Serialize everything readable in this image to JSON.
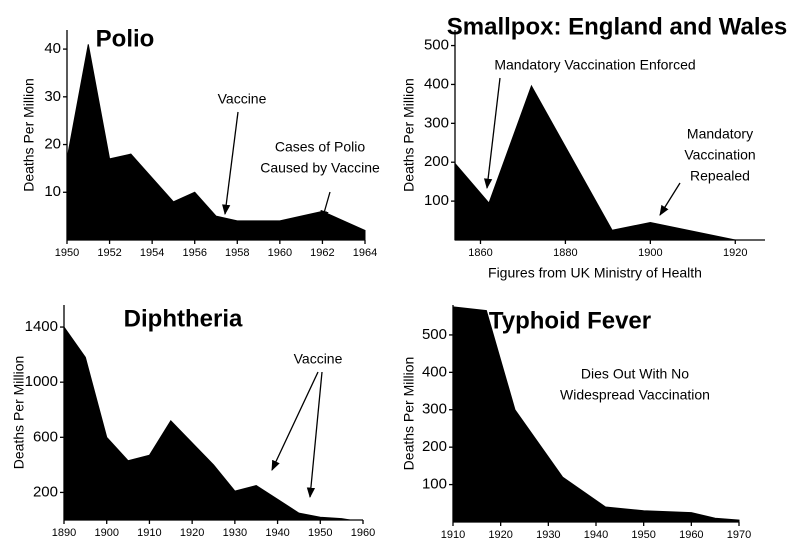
{
  "chart_data": [
    {
      "type": "area",
      "title": "Polio",
      "ylabel": "Deaths Per Million",
      "color": "#000000",
      "x": [
        1950,
        1951,
        1952,
        1953,
        1954,
        1955,
        1956,
        1957,
        1958,
        1959,
        1960,
        1961,
        1962,
        1963,
        1964
      ],
      "values": [
        17,
        41,
        17,
        18,
        13,
        8,
        10,
        5,
        4,
        4,
        4,
        5,
        6,
        4,
        2
      ],
      "xlim": [
        1950,
        1964
      ],
      "ylim": [
        0,
        44
      ],
      "xticks": [
        1950,
        1952,
        1954,
        1956,
        1958,
        1960,
        1962,
        1964
      ],
      "yticks": [
        10,
        20,
        30,
        40
      ],
      "annotations": [
        {
          "text": [
            "Vaccine"
          ]
        },
        {
          "text": [
            "Cases of Polio",
            "Caused by Vaccine"
          ]
        }
      ]
    },
    {
      "type": "area",
      "title": "Smallpox: England and Wales",
      "ylabel": "Deaths Per Million",
      "xlabel": "Figures from UK Ministry of Health",
      "color": "#000000",
      "x": [
        1854,
        1862,
        1872,
        1891,
        1900,
        1920
      ],
      "values": [
        197,
        95,
        396,
        25,
        45,
        0
      ],
      "xlim": [
        1854,
        1927
      ],
      "ylim": [
        0,
        540
      ],
      "xticks": [
        1860,
        1880,
        1900,
        1920
      ],
      "yticks": [
        100,
        200,
        300,
        400,
        500
      ],
      "annotations": [
        {
          "text": [
            "Mandatory Vaccination Enforced"
          ]
        },
        {
          "text": [
            "Mandatory",
            "Vaccination",
            "Repealed"
          ]
        }
      ]
    },
    {
      "type": "area",
      "title": "Diphtheria",
      "ylabel": "Deaths Per Million",
      "color": "#000000",
      "x": [
        1890,
        1895,
        1900,
        1905,
        1910,
        1915,
        1920,
        1925,
        1930,
        1935,
        1940,
        1945,
        1950,
        1955,
        1957
      ],
      "values": [
        1400,
        1180,
        600,
        430,
        470,
        720,
        560,
        400,
        210,
        250,
        150,
        50,
        20,
        10,
        0
      ],
      "xlim": [
        1890,
        1960
      ],
      "ylim": [
        0,
        1560
      ],
      "xticks": [
        1890,
        1900,
        1910,
        1920,
        1930,
        1940,
        1950,
        1960
      ],
      "yticks": [
        200,
        600,
        1000,
        1400
      ],
      "annotations": [
        {
          "text": [
            "Vaccine"
          ]
        }
      ]
    },
    {
      "type": "area",
      "title": "Typhoid Fever",
      "ylabel": "Deaths Per Million",
      "color": "#000000",
      "x": [
        1910,
        1917,
        1923,
        1933,
        1942,
        1950,
        1960,
        1965,
        1970
      ],
      "values": [
        575,
        565,
        300,
        120,
        40,
        30,
        25,
        10,
        5
      ],
      "xlim": [
        1910,
        1970
      ],
      "ylim": [
        0,
        580
      ],
      "xticks": [
        1910,
        1920,
        1930,
        1940,
        1950,
        1960,
        1970
      ],
      "yticks": [
        100,
        200,
        300,
        400,
        500
      ],
      "annotations": [
        {
          "text": [
            "Dies Out With No",
            "Widespread Vaccination"
          ]
        }
      ]
    }
  ]
}
